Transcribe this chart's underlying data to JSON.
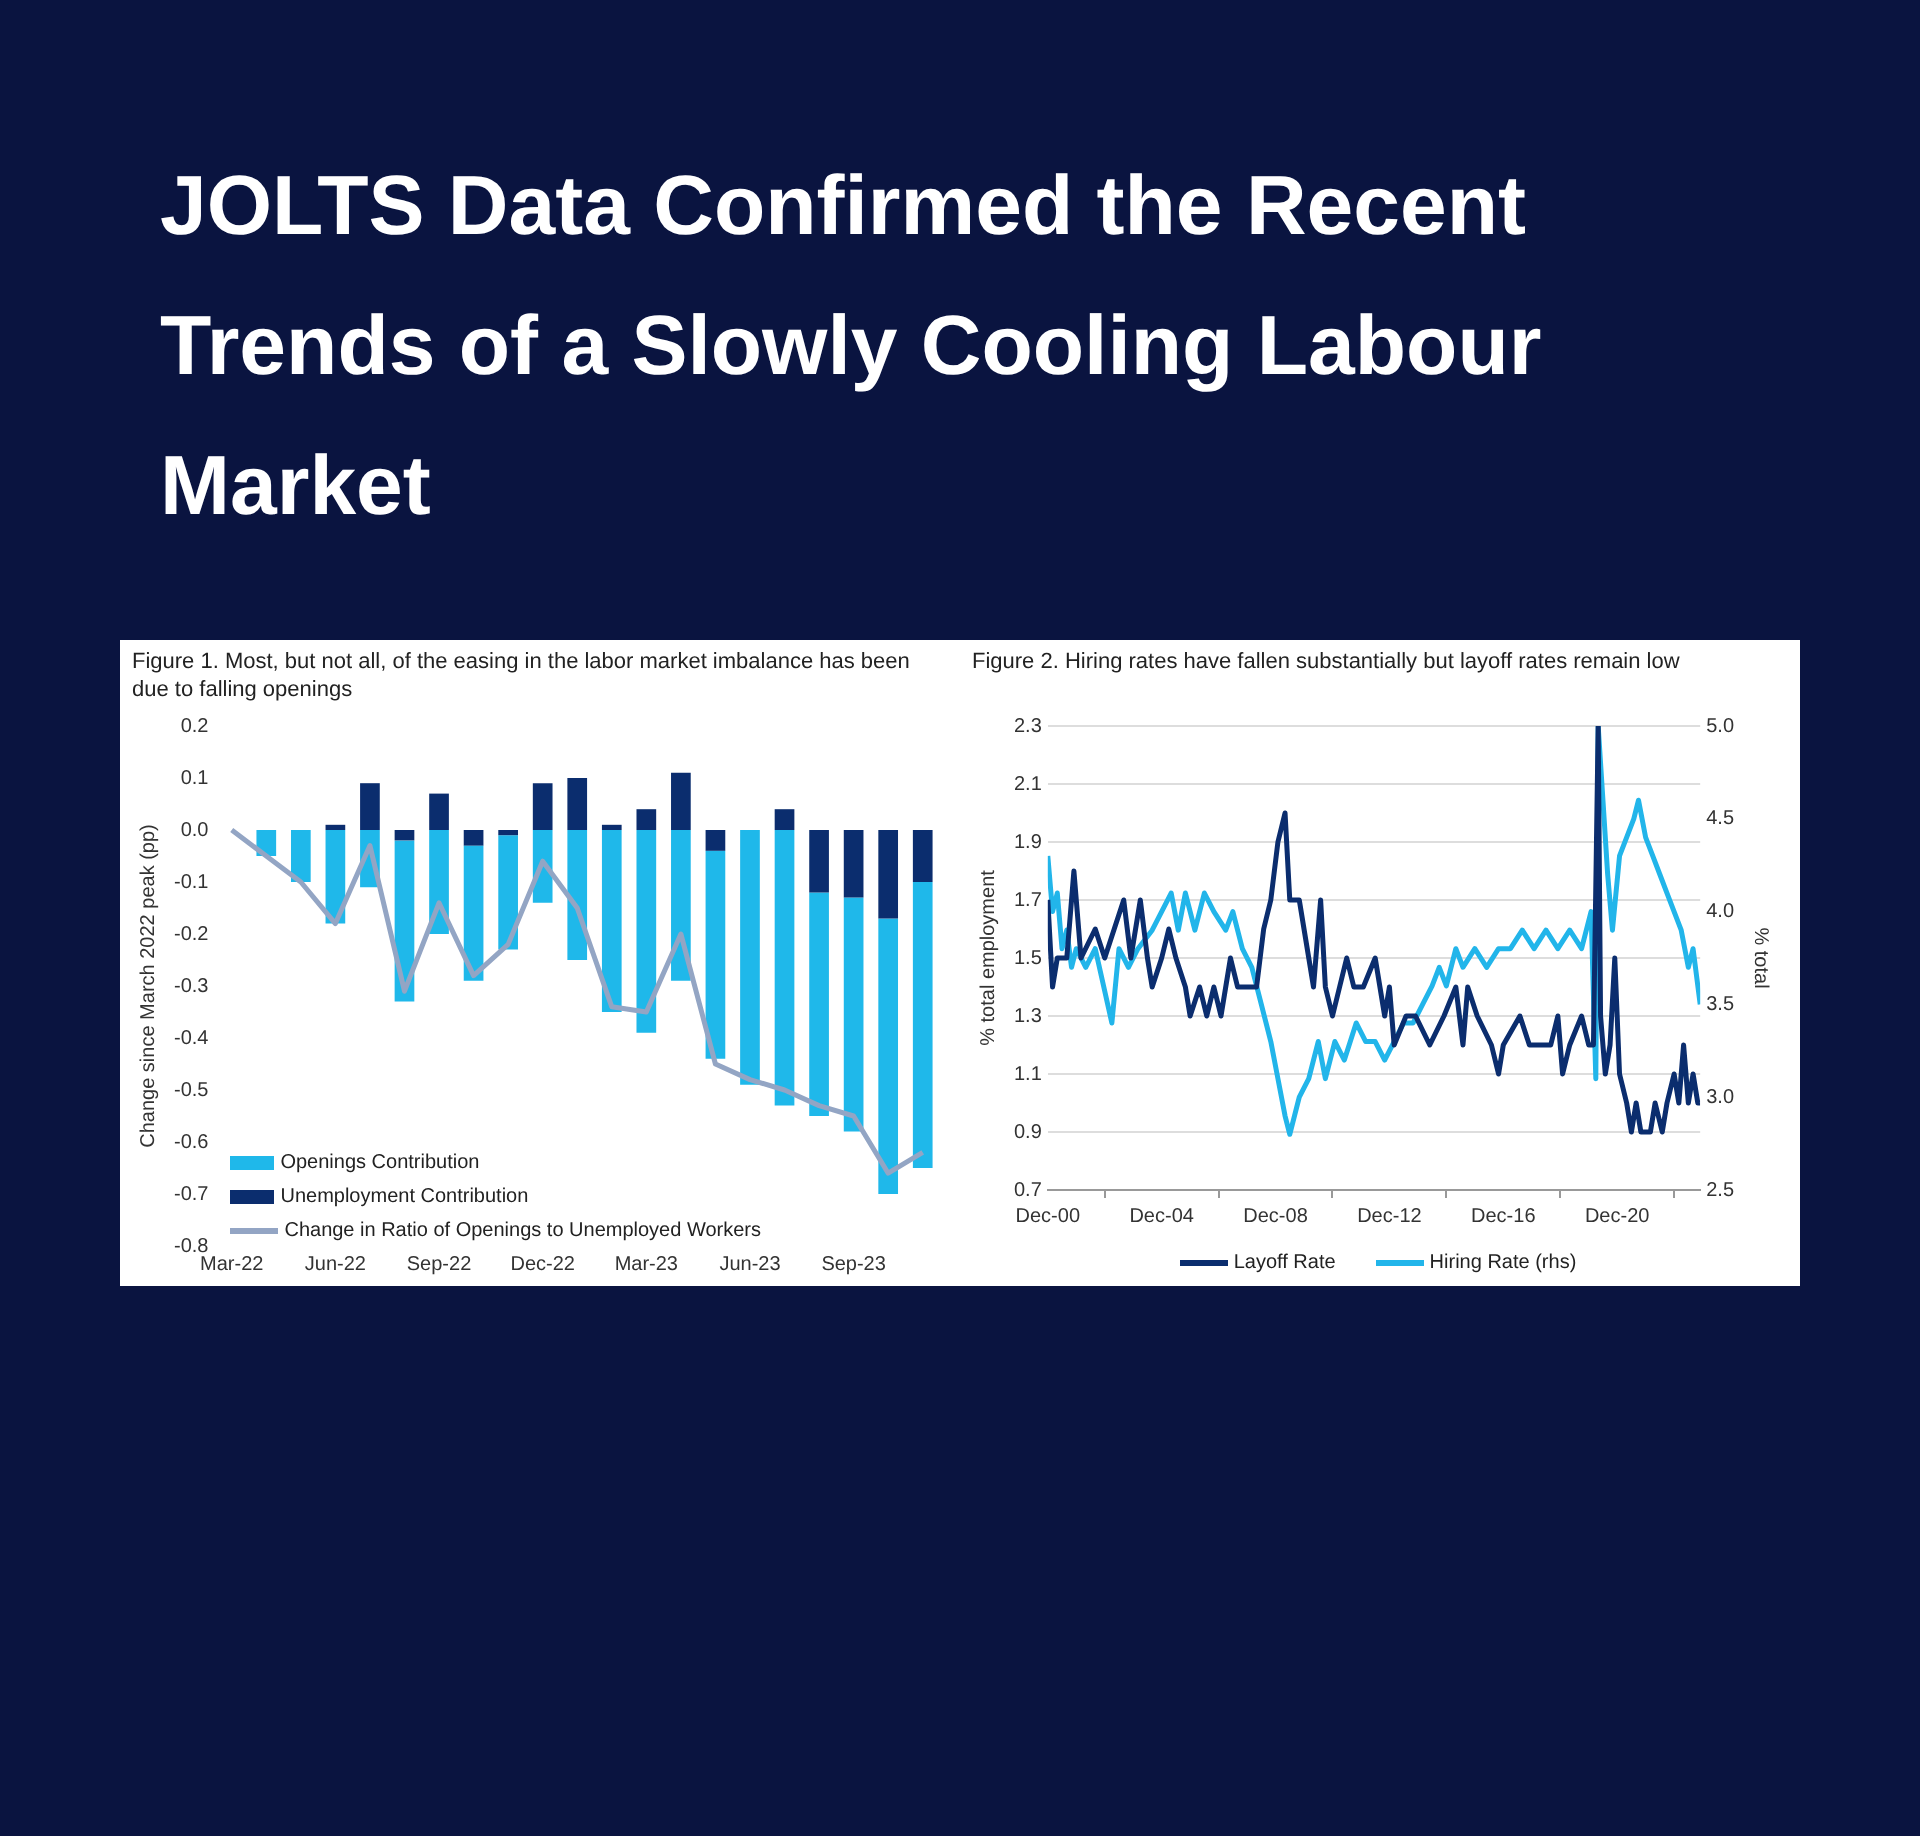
{
  "chart_data": [
    {
      "type": "other",
      "title": "JOLTS Data Confirmed the Recent Trends of a Slowly Cooling Labour Market"
    },
    {
      "type": "bar",
      "title": "Figure 1. Most, but not all, of the easing in the labor market imbalance has been due to falling openings",
      "ylabel": "Change since March 2022 peak (pp)",
      "stacked": true,
      "grid": false,
      "legend": "bottom left",
      "marker": "none",
      "categories": [
        "Mar-22",
        null,
        null,
        "Jun-22",
        null,
        null,
        "Sep-22",
        null,
        null,
        "Dec-22",
        null,
        null,
        "Mar-23",
        null,
        null,
        "Jun-23",
        null,
        null,
        "Sep-23",
        null,
        null
      ],
      "ylim": [
        -0.8,
        0.2
      ],
      "yticks": [
        0.2,
        0.1,
        {
          "value": 0,
          "label": "0.0"
        },
        -0.1,
        -0.2,
        -0.3,
        -0.4,
        -0.5,
        -0.6,
        -0.7,
        -0.8
      ],
      "series": [
        {
          "name": "Unemployment Contribution",
          "type": "bar",
          "color": "#0b2d6e",
          "values": [
            null,
            0,
            0,
            0.01,
            0.09,
            -0.02,
            0.07,
            -0.03,
            -0.01,
            0.09,
            0.1,
            0.01,
            0.04,
            0.11,
            -0.04,
            0,
            0.04,
            -0.12,
            -0.13,
            -0.17,
            -0.1
          ]
        },
        {
          "name": "Openings Contribution",
          "type": "bar",
          "color": "#1fb8ea",
          "values": [
            null,
            -0.05,
            -0.1,
            -0.18,
            -0.11,
            -0.31,
            -0.2,
            -0.26,
            -0.22,
            -0.14,
            -0.25,
            -0.35,
            -0.39,
            -0.29,
            -0.4,
            -0.49,
            -0.53,
            -0.43,
            -0.45,
            -0.53,
            -0.55
          ]
        },
        {
          "name": "Change in Ratio of Openings to Unemployed Workers",
          "type": "line",
          "color": "#93a5c4",
          "values": [
            0,
            -0.05,
            -0.1,
            -0.18,
            -0.03,
            -0.31,
            -0.14,
            -0.28,
            -0.22,
            -0.06,
            -0.15,
            -0.34,
            -0.35,
            -0.2,
            -0.45,
            -0.48,
            -0.5,
            -0.53,
            -0.55,
            -0.66,
            -0.62
          ]
        }
      ]
    },
    {
      "type": "line",
      "title": "Figure 2. Hiring rates have fallen substantially but layoff rates remain low",
      "ylabel": "% total employment",
      "y2label": "% total",
      "grid": "y",
      "legend": "bottom",
      "marker": "none",
      "xlim": [
        "2000-12",
        "2023-11"
      ],
      "xticks": [
        {
          "value": "2000-12",
          "label": "Dec-00"
        },
        {
          "value": "2004-12",
          "label": "Dec-04"
        },
        {
          "value": "2008-12",
          "label": "Dec-08"
        },
        {
          "value": "2012-12",
          "label": "Dec-12"
        },
        {
          "value": "2016-12",
          "label": "Dec-16"
        },
        {
          "value": "2020-12",
          "label": "Dec-20"
        }
      ],
      "ylim": [
        0.7,
        2.3
      ],
      "yticks": [
        0.7,
        0.9,
        1.1,
        1.3,
        1.5,
        1.7,
        1.9,
        2.1,
        2.3
      ],
      "y2lim": [
        2.5,
        5
      ],
      "y2ticks": [
        2.5,
        {
          "value": 3,
          "label": "3.0"
        },
        3.5,
        {
          "value": 4,
          "label": "4.0"
        },
        4.5,
        {
          "value": 5,
          "label": "5.0"
        }
      ],
      "series": [
        {
          "name": "Layoff Rate",
          "color": "#0b2d6e",
          "x": [
            "2000-12",
            "2001-02",
            "2001-04",
            "2001-08",
            "2001-11",
            "2002-02",
            "2002-08",
            "2002-12",
            "2003-04",
            "2003-08",
            "2003-11",
            "2004-03",
            "2004-06",
            "2004-08",
            "2004-12",
            "2005-03",
            "2005-06",
            "2005-10",
            "2005-12",
            "2006-04",
            "2006-07",
            "2006-10",
            "2007-01",
            "2007-05",
            "2007-08",
            "2008-04",
            "2008-07",
            "2008-10",
            "2009-01",
            "2009-04",
            "2009-06",
            "2009-10",
            "2010-02",
            "2010-04",
            "2010-07",
            "2010-09",
            "2010-12",
            "2011-03",
            "2011-06",
            "2011-09",
            "2012-01",
            "2012-06",
            "2012-10",
            "2012-12",
            "2013-02",
            "2013-07",
            "2013-11",
            "2014-05",
            "2014-11",
            "2015-04",
            "2015-07",
            "2015-09",
            "2016-01",
            "2016-07",
            "2016-10",
            "2016-12",
            "2017-07",
            "2017-11",
            "2018-08",
            "2018-11",
            "2019-01",
            "2019-04",
            "2019-09",
            "2019-12",
            "2020-02",
            "2020-04",
            "2020-05",
            "2020-07",
            "2020-09",
            "2020-11",
            "2021-01",
            "2021-04",
            "2021-06",
            "2021-08",
            "2021-10",
            "2022-02",
            "2022-04",
            "2022-07",
            "2022-09",
            "2022-12",
            "2023-02",
            "2023-04",
            "2023-06",
            "2023-08",
            "2023-10",
            "2023-11"
          ],
          "values": [
            1.7,
            1.4,
            1.5,
            1.5,
            1.8,
            1.5,
            1.6,
            1.5,
            1.6,
            1.7,
            1.5,
            1.7,
            1.5,
            1.4,
            1.5,
            1.6,
            1.5,
            1.4,
            1.3,
            1.4,
            1.3,
            1.4,
            1.3,
            1.5,
            1.4,
            1.4,
            1.6,
            1.7,
            1.9,
            2.0,
            1.7,
            1.7,
            1.5,
            1.4,
            1.7,
            1.4,
            1.3,
            1.4,
            1.5,
            1.4,
            1.4,
            1.5,
            1.3,
            1.4,
            1.2,
            1.3,
            1.3,
            1.2,
            1.3,
            1.4,
            1.2,
            1.4,
            1.3,
            1.2,
            1.1,
            1.2,
            1.3,
            1.2,
            1.2,
            1.3,
            1.1,
            1.2,
            1.3,
            1.2,
            1.2,
            2.3,
            1.3,
            1.1,
            1.2,
            1.5,
            1.1,
            1.0,
            0.9,
            1.0,
            0.9,
            0.9,
            1.0,
            0.9,
            1.0,
            1.1,
            1.0,
            1.2,
            1.0,
            1.1,
            1.0,
            1.0
          ]
        },
        {
          "name": "Hiring Rate (rhs)",
          "color": "#22b5ea",
          "axis": "y2",
          "x": [
            "2000-12",
            "2001-02",
            "2001-04",
            "2001-06",
            "2001-08",
            "2001-10",
            "2001-12",
            "2002-04",
            "2002-08",
            "2003-03",
            "2003-06",
            "2003-10",
            "2004-02",
            "2004-08",
            "2004-12",
            "2005-04",
            "2005-07",
            "2005-10",
            "2006-02",
            "2006-06",
            "2006-10",
            "2007-03",
            "2007-06",
            "2007-10",
            "2008-02",
            "2008-06",
            "2008-10",
            "2009-01",
            "2009-04",
            "2009-06",
            "2009-10",
            "2010-02",
            "2010-06",
            "2010-09",
            "2011-01",
            "2011-05",
            "2011-10",
            "2012-02",
            "2012-06",
            "2012-10",
            "2013-02",
            "2013-06",
            "2013-10",
            "2014-02",
            "2014-06",
            "2014-09",
            "2014-12",
            "2015-04",
            "2015-07",
            "2015-12",
            "2016-05",
            "2016-10",
            "2017-03",
            "2017-08",
            "2018-01",
            "2018-06",
            "2018-11",
            "2019-04",
            "2019-09",
            "2020-01",
            "2020-03",
            "2020-04",
            "2020-06",
            "2020-08",
            "2020-10",
            "2021-01",
            "2021-04",
            "2021-07",
            "2021-09",
            "2021-12",
            "2022-03",
            "2022-06",
            "2022-09",
            "2022-12",
            "2023-03",
            "2023-06",
            "2023-08",
            "2023-11"
          ],
          "values": [
            4.3,
            4.0,
            4.1,
            3.8,
            3.9,
            3.7,
            3.8,
            3.7,
            3.8,
            3.4,
            3.8,
            3.7,
            3.8,
            3.9,
            4.0,
            4.1,
            3.9,
            4.1,
            3.9,
            4.1,
            4.0,
            3.9,
            4.0,
            3.8,
            3.7,
            3.5,
            3.3,
            3.1,
            2.9,
            2.8,
            3.0,
            3.1,
            3.3,
            3.1,
            3.3,
            3.2,
            3.4,
            3.3,
            3.3,
            3.2,
            3.3,
            3.4,
            3.4,
            3.5,
            3.6,
            3.7,
            3.6,
            3.8,
            3.7,
            3.8,
            3.7,
            3.8,
            3.8,
            3.9,
            3.8,
            3.9,
            3.8,
            3.9,
            3.8,
            4.0,
            3.1,
            5.0,
            4.6,
            4.2,
            3.9,
            4.3,
            4.4,
            4.5,
            4.6,
            4.4,
            4.3,
            4.2,
            4.1,
            4.0,
            3.9,
            3.7,
            3.8,
            3.5
          ]
        }
      ]
    }
  ]
}
